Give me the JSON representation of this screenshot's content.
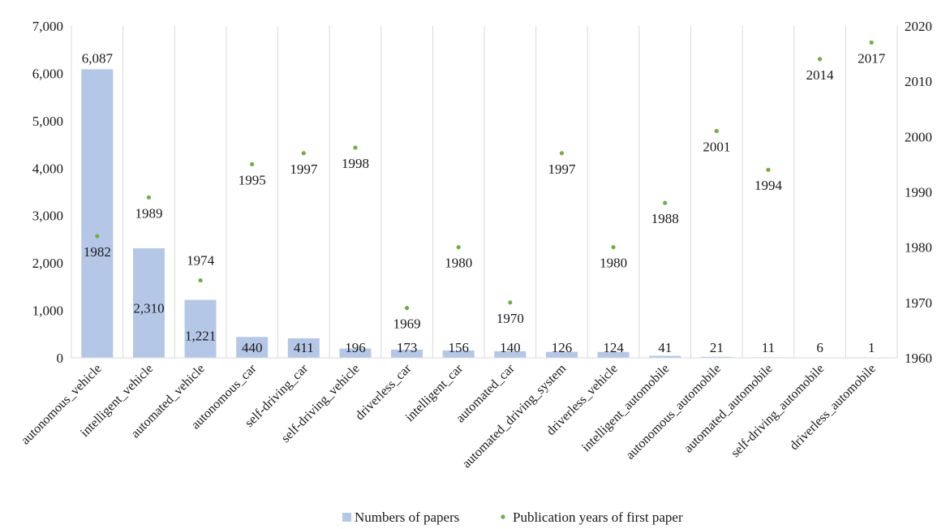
{
  "chart_data": {
    "type": "bar",
    "categories": [
      "autonomous_vehicle",
      "intelligent_vehicle",
      "automated_vehicle",
      "autonomous_car",
      "self-driving_car",
      "self-driving_vehicle",
      "driverless_car",
      "intelligent_car",
      "automated_car",
      "automated_driving_system",
      "driverless_vehicle",
      "intelligent_automobile",
      "autonomous_automobile",
      "automated_automobile",
      "self-driving_automobile",
      "driverless_automobile"
    ],
    "series": [
      {
        "name": "Numbers of papers",
        "type": "bar",
        "axis": "left",
        "color": "#b4c7e7",
        "values": [
          6087,
          2310,
          1221,
          440,
          411,
          196,
          173,
          156,
          140,
          126,
          124,
          41,
          21,
          11,
          6,
          1
        ],
        "labels": [
          "6,087",
          "2,310",
          "1,221",
          "440",
          "411",
          "196",
          "173",
          "156",
          "140",
          "126",
          "124",
          "41",
          "21",
          "11",
          "6",
          "1"
        ]
      },
      {
        "name": "Publication years of first paper",
        "type": "scatter",
        "axis": "right",
        "color": "#70ad47",
        "values": [
          1982,
          1989,
          1974,
          1995,
          1997,
          1998,
          1969,
          1980,
          1970,
          1997,
          1980,
          1988,
          2001,
          1994,
          2014,
          2017
        ],
        "labels": [
          "1982",
          "1989",
          "1974",
          "1995",
          "1997",
          "1998",
          "1969",
          "1980",
          "1970",
          "1997",
          "1980",
          "1988",
          "2001",
          "1994",
          "2014",
          "2017"
        ]
      }
    ],
    "y_left": {
      "min": 0,
      "max": 7000,
      "ticks": [
        "0",
        "1,000",
        "2,000",
        "3,000",
        "4,000",
        "5,000",
        "6,000",
        "7,000"
      ]
    },
    "y_right": {
      "min": 1960,
      "max": 2020,
      "ticks": [
        "1960",
        "1970",
        "1980",
        "1990",
        "2000",
        "2010",
        "2020"
      ]
    },
    "grid": "vertical",
    "legend_position": "bottom"
  }
}
